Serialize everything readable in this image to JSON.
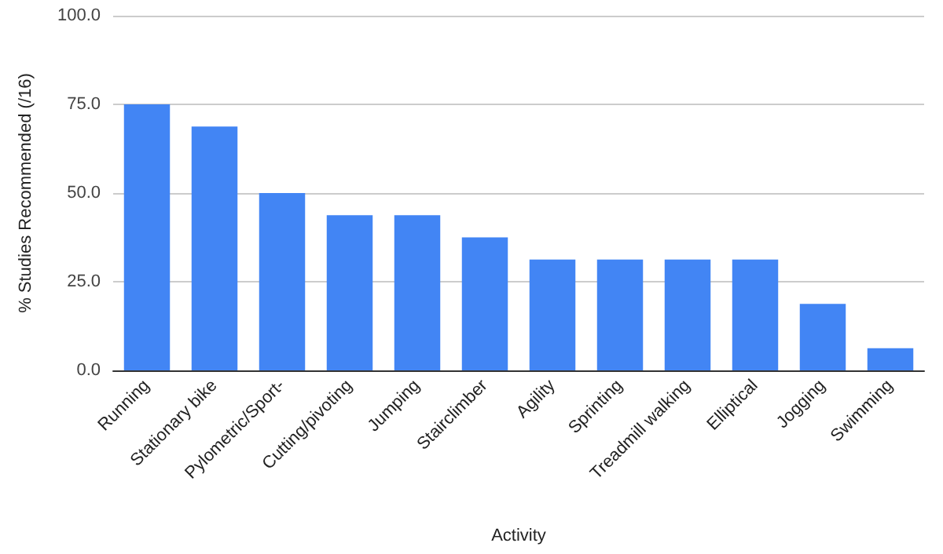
{
  "chart_data": {
    "type": "bar",
    "xlabel": "Activity",
    "ylabel": "% Studies Recommended (/16)",
    "categories": [
      "Running",
      "Stationary bike",
      "Pylometric/Sport-",
      "Cutting/pivoting",
      "Jumping",
      "Stairclimber",
      "Agility",
      "Sprinting",
      "Treadmill walking",
      "Elliptical",
      "Jogging",
      "Swimming"
    ],
    "values": [
      75,
      68.75,
      50,
      43.75,
      43.75,
      37.5,
      31.25,
      31.25,
      31.25,
      31.25,
      18.75,
      6.25
    ],
    "color": "#4285f4",
    "ylim": [
      0,
      100
    ],
    "yticks": [
      {
        "value": 0,
        "label": "0.0"
      },
      {
        "value": 25,
        "label": "25.0"
      },
      {
        "value": 50,
        "label": "50.0"
      },
      {
        "value": 75,
        "label": "75.0"
      },
      {
        "value": 100,
        "label": "100.0"
      }
    ],
    "grid": "y"
  }
}
